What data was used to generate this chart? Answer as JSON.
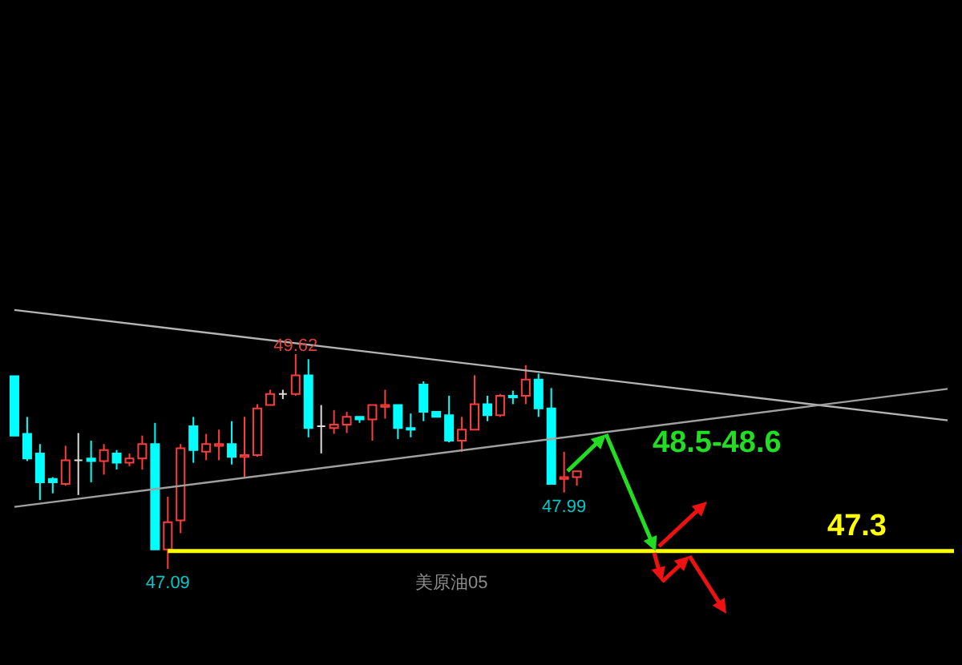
{
  "chart_data": {
    "type": "candlestick",
    "categories": [
      null,
      null,
      null,
      null,
      null,
      null,
      null,
      null,
      null,
      null,
      null,
      null,
      null,
      null,
      null,
      null,
      null,
      null,
      null,
      null,
      null,
      null,
      null,
      null,
      null,
      null,
      null,
      null,
      null,
      null,
      null,
      null,
      null,
      null,
      null,
      null,
      null,
      null,
      null,
      null,
      null,
      null,
      null,
      null,
      null,
      null,
      null,
      null,
      null,
      null,
      null,
      null,
      null,
      null,
      null,
      null,
      null,
      null,
      null,
      null,
      null,
      null,
      null,
      null,
      null,
      null,
      null,
      null,
      null,
      null,
      null,
      null,
      null,
      null
    ],
    "ohlc": [
      [
        49.36,
        49.36,
        48.66,
        48.66
      ],
      [
        48.68,
        48.88,
        48.36,
        48.39
      ],
      [
        48.45,
        48.56,
        47.9,
        48.11
      ],
      [
        48.15,
        48.17,
        47.98,
        48.11
      ],
      [
        48.09,
        48.54,
        48.07,
        48.37
      ],
      [
        48.37,
        48.69,
        47.96,
        48.37
      ],
      [
        48.39,
        48.6,
        48.11,
        48.36
      ],
      [
        48.36,
        48.56,
        48.2,
        48.49
      ],
      [
        48.45,
        48.49,
        48.26,
        48.34
      ],
      [
        48.34,
        48.45,
        48.3,
        48.39
      ],
      [
        48.39,
        48.66,
        48.26,
        48.56
      ],
      [
        48.56,
        48.81,
        47.32,
        47.32
      ],
      [
        47.32,
        47.94,
        47.09,
        47.64
      ],
      [
        47.66,
        48.56,
        47.51,
        48.51
      ],
      [
        48.77,
        48.88,
        48.34,
        48.49
      ],
      [
        48.47,
        48.68,
        48.37,
        48.56
      ],
      [
        48.54,
        48.73,
        48.37,
        48.56
      ],
      [
        48.56,
        48.83,
        48.32,
        48.41
      ],
      [
        48.41,
        48.88,
        48.17,
        48.43
      ],
      [
        48.43,
        49.03,
        48.41,
        48.98
      ],
      [
        49.02,
        49.2,
        49.02,
        49.15
      ],
      [
        49.15,
        49.2,
        49.09,
        49.15
      ],
      [
        49.15,
        49.62,
        49.13,
        49.37
      ],
      [
        49.37,
        49.56,
        48.64,
        48.75
      ],
      [
        48.77,
        49.02,
        48.45,
        48.77
      ],
      [
        48.75,
        48.96,
        48.68,
        48.79
      ],
      [
        48.79,
        48.94,
        48.69,
        48.88
      ],
      [
        48.88,
        48.88,
        48.81,
        48.85
      ],
      [
        48.85,
        49.02,
        48.6,
        49.02
      ],
      [
        49.0,
        49.2,
        48.86,
        49.02
      ],
      [
        49.02,
        49.02,
        48.62,
        48.75
      ],
      [
        48.75,
        48.92,
        48.64,
        48.73
      ],
      [
        49.26,
        49.3,
        48.83,
        48.94
      ],
      [
        48.94,
        48.94,
        48.88,
        48.88
      ],
      [
        48.9,
        49.13,
        48.58,
        48.6
      ],
      [
        48.6,
        48.88,
        48.47,
        48.73
      ],
      [
        48.73,
        49.37,
        48.73,
        49.03
      ],
      [
        49.03,
        49.13,
        48.83,
        48.9
      ],
      [
        48.9,
        49.15,
        48.88,
        49.13
      ],
      [
        49.13,
        49.19,
        49.03,
        49.11
      ],
      [
        49.13,
        49.49,
        49.03,
        49.32
      ],
      [
        49.32,
        49.39,
        48.88,
        48.98
      ],
      [
        48.98,
        49.22,
        48.09,
        48.09
      ],
      [
        48.15,
        48.47,
        47.99,
        48.17
      ],
      [
        48.17,
        48.24,
        48.07,
        48.24
      ],
      null,
      null,
      null,
      null,
      null,
      null,
      null,
      null,
      null,
      null,
      null,
      null,
      null,
      null,
      null,
      null,
      null,
      null,
      null,
      null,
      null,
      null,
      null,
      null,
      null,
      null,
      null,
      null,
      null
    ],
    "series": [
      {
        "type": "line",
        "color": "#b4b4b4",
        "values": [
          50.14,
          null,
          null,
          null,
          null,
          null,
          null,
          null,
          null,
          null,
          null,
          null,
          null,
          null,
          null,
          null,
          null,
          null,
          null,
          null,
          null,
          null,
          null,
          null,
          null,
          null,
          null,
          null,
          null,
          null,
          null,
          null,
          null,
          null,
          null,
          null,
          null,
          null,
          null,
          null,
          null,
          null,
          null,
          null,
          null,
          null,
          null,
          null,
          null,
          null,
          null,
          null,
          null,
          null,
          null,
          null,
          null,
          null,
          null,
          null,
          null,
          null,
          null,
          null,
          null,
          null,
          null,
          null,
          null,
          null,
          null,
          null,
          null,
          48.84
        ]
      },
      {
        "type": "line",
        "color": "#a0a0a0",
        "values": [
          47.82,
          null,
          null,
          null,
          null,
          null,
          null,
          null,
          null,
          null,
          null,
          null,
          null,
          null,
          null,
          null,
          null,
          null,
          null,
          null,
          null,
          null,
          null,
          null,
          null,
          null,
          null,
          null,
          null,
          null,
          null,
          null,
          null,
          null,
          null,
          null,
          null,
          null,
          null,
          null,
          null,
          null,
          null,
          null,
          null,
          null,
          null,
          null,
          null,
          null,
          null,
          null,
          null,
          null,
          null,
          null,
          null,
          null,
          null,
          null,
          null,
          null,
          null,
          null,
          null,
          null,
          null,
          null,
          null,
          null,
          null,
          null,
          null,
          49.21
        ]
      }
    ],
    "ref_lines": [
      {
        "axis": "y",
        "value": 47.3,
        "label": "47.3",
        "color": "#ffff00"
      }
    ],
    "annotations": [
      {
        "text": "49.62",
        "y": 49.62
      },
      {
        "text": "47.99",
        "y": 47.99
      },
      {
        "text": "47.09",
        "y": 47.09
      },
      "48.5-48.6",
      "美原油05"
    ],
    "data_labels": false
  }
}
